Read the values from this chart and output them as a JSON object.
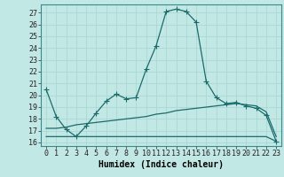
{
  "xlabel": "Humidex (Indice chaleur)",
  "background_color": "#c2e8e5",
  "grid_color": "#aad8d5",
  "line_color": "#1a6b6b",
  "xlim": [
    -0.5,
    23.5
  ],
  "ylim": [
    15.7,
    27.7
  ],
  "yticks": [
    16,
    17,
    18,
    19,
    20,
    21,
    22,
    23,
    24,
    25,
    26,
    27
  ],
  "xticks": [
    0,
    1,
    2,
    3,
    4,
    5,
    6,
    7,
    8,
    9,
    10,
    11,
    12,
    13,
    14,
    15,
    16,
    17,
    18,
    19,
    20,
    21,
    22,
    23
  ],
  "series1_x": [
    0,
    1,
    2,
    3,
    4,
    5,
    6,
    7,
    8,
    9,
    10,
    11,
    12,
    13,
    14,
    15,
    16,
    17,
    18,
    19,
    20,
    21,
    22,
    23
  ],
  "series1_y": [
    20.5,
    18.2,
    17.1,
    16.5,
    17.4,
    18.5,
    19.5,
    20.1,
    19.7,
    19.8,
    22.2,
    24.2,
    27.1,
    27.3,
    27.1,
    26.2,
    21.2,
    19.8,
    19.3,
    19.4,
    19.1,
    18.9,
    18.3,
    16.1
  ],
  "series2_x": [
    0,
    1,
    2,
    3,
    4,
    5,
    6,
    7,
    8,
    9,
    10,
    11,
    12,
    13,
    14,
    15,
    16,
    17,
    18,
    19,
    20,
    21,
    22,
    23
  ],
  "series2_y": [
    17.2,
    17.2,
    17.3,
    17.5,
    17.6,
    17.7,
    17.8,
    17.9,
    18.0,
    18.1,
    18.2,
    18.4,
    18.5,
    18.7,
    18.8,
    18.9,
    19.0,
    19.1,
    19.2,
    19.3,
    19.2,
    19.1,
    18.6,
    16.5
  ],
  "series3_x": [
    0,
    1,
    2,
    3,
    4,
    5,
    6,
    7,
    8,
    9,
    10,
    11,
    12,
    13,
    14,
    15,
    16,
    17,
    18,
    19,
    20,
    21,
    22,
    23
  ],
  "series3_y": [
    16.5,
    16.5,
    16.5,
    16.5,
    16.5,
    16.5,
    16.5,
    16.5,
    16.5,
    16.5,
    16.5,
    16.5,
    16.5,
    16.5,
    16.5,
    16.5,
    16.5,
    16.5,
    16.5,
    16.5,
    16.5,
    16.5,
    16.5,
    16.1
  ],
  "linewidth": 0.9,
  "markersize": 4,
  "tick_fontsize": 6,
  "xlabel_fontsize": 7
}
